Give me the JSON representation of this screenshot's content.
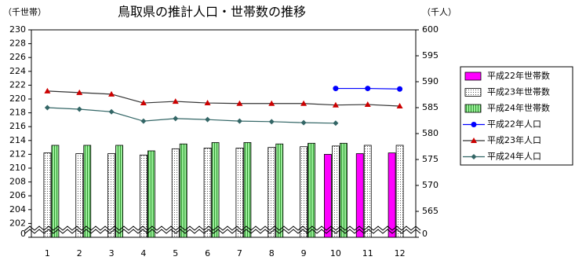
{
  "chart_data": {
    "type": "bar-line",
    "title": "鳥取県の推計人口・世帯数の推移",
    "y_label": "（千世帯）",
    "y2_label": "（千人）",
    "categories": [
      "1",
      "2",
      "3",
      "4",
      "5",
      "6",
      "7",
      "8",
      "9",
      "10",
      "11",
      "12"
    ],
    "ylim": [
      200,
      230
    ],
    "yticks": [
      {
        "value": 200,
        "label": "0"
      },
      202,
      204,
      206,
      208,
      210,
      212,
      214,
      216,
      218,
      220,
      222,
      224,
      226,
      228,
      230
    ],
    "y2lim": [
      560,
      600
    ],
    "y2ticks": [
      {
        "value": 560,
        "label": "0"
      },
      565,
      570,
      575,
      580,
      585,
      590,
      595,
      600
    ],
    "series": [
      {
        "name": "平成22年世帯数",
        "kind": "bar",
        "color": "#ff00ff",
        "values": [
          null,
          null,
          null,
          null,
          null,
          null,
          null,
          null,
          null,
          212.0,
          212.1,
          212.2
        ]
      },
      {
        "name": "平成23年世帯数",
        "kind": "bar",
        "color": "#ffffff",
        "pattern": "dots",
        "values": [
          212.2,
          212.1,
          212.1,
          211.9,
          212.8,
          212.9,
          212.9,
          213.0,
          213.1,
          213.2,
          213.3,
          213.3
        ]
      },
      {
        "name": "平成24年世帯数",
        "kind": "bar",
        "color": "#99ee99",
        "pattern": "stripes",
        "values": [
          213.3,
          213.3,
          213.3,
          212.5,
          213.5,
          213.7,
          213.7,
          213.5,
          213.6,
          213.6,
          null,
          null
        ]
      },
      {
        "name": "平成22年人口",
        "kind": "line",
        "axis": "y2",
        "color": "#0000ff",
        "marker": "circle",
        "values": [
          null,
          null,
          null,
          null,
          null,
          null,
          null,
          null,
          null,
          588.7,
          588.7,
          588.6
        ]
      },
      {
        "name": "平成23年人口",
        "kind": "line",
        "axis": "y2",
        "color": "#cc0000",
        "line_color": "#333333",
        "marker": "triangle",
        "values": [
          588.2,
          587.9,
          587.6,
          585.9,
          586.2,
          585.9,
          585.8,
          585.8,
          585.8,
          585.5,
          585.6,
          585.3
        ]
      },
      {
        "name": "平成24年人口",
        "kind": "line",
        "axis": "y2",
        "color": "#336666",
        "marker": "diamond",
        "values": [
          585.0,
          584.7,
          584.2,
          582.4,
          582.9,
          582.7,
          582.4,
          582.3,
          582.1,
          582.0,
          null,
          null
        ]
      }
    ]
  }
}
